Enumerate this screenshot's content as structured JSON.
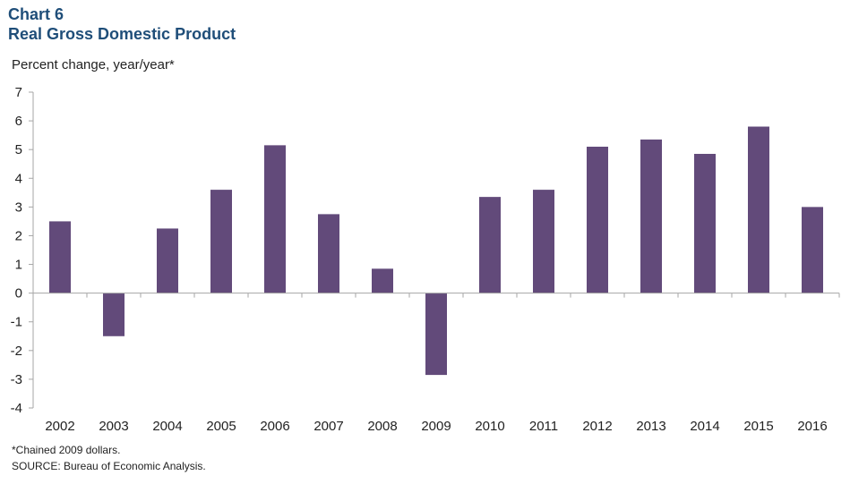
{
  "header": {
    "chart_number": "Chart 6",
    "title": "Real Gross Domestic Product"
  },
  "footer": {
    "note": "*Chained  2009 dollars.",
    "source": "SOURCE: Bureau of  Economic Analysis."
  },
  "colors": {
    "bar": "#624a7a",
    "title": "#1f4e79",
    "axis": "#a6a6a6"
  },
  "chart_data": {
    "type": "bar",
    "title": "Real Gross Domestic Product",
    "ylabel": "Percent change, year/year*",
    "xlabel": "",
    "categories": [
      "2002",
      "2003",
      "2004",
      "2005",
      "2006",
      "2007",
      "2008",
      "2009",
      "2010",
      "2011",
      "2012",
      "2013",
      "2014",
      "2015",
      "2016"
    ],
    "values": [
      2.5,
      -1.5,
      2.25,
      3.6,
      5.15,
      2.75,
      0.85,
      -2.85,
      3.35,
      3.6,
      5.1,
      5.35,
      4.85,
      5.8,
      3.0
    ],
    "ylim": [
      -4,
      7
    ],
    "yticks": [
      7,
      6,
      5,
      4,
      3,
      2,
      1,
      0,
      -1,
      -2,
      -3,
      -4
    ],
    "ytick_labels": [
      "7",
      "6",
      "5",
      "4",
      "3",
      "2",
      "1",
      "0",
      "-1",
      "-2",
      "-3",
      "-4"
    ],
    "grid": false,
    "legend": "none"
  }
}
